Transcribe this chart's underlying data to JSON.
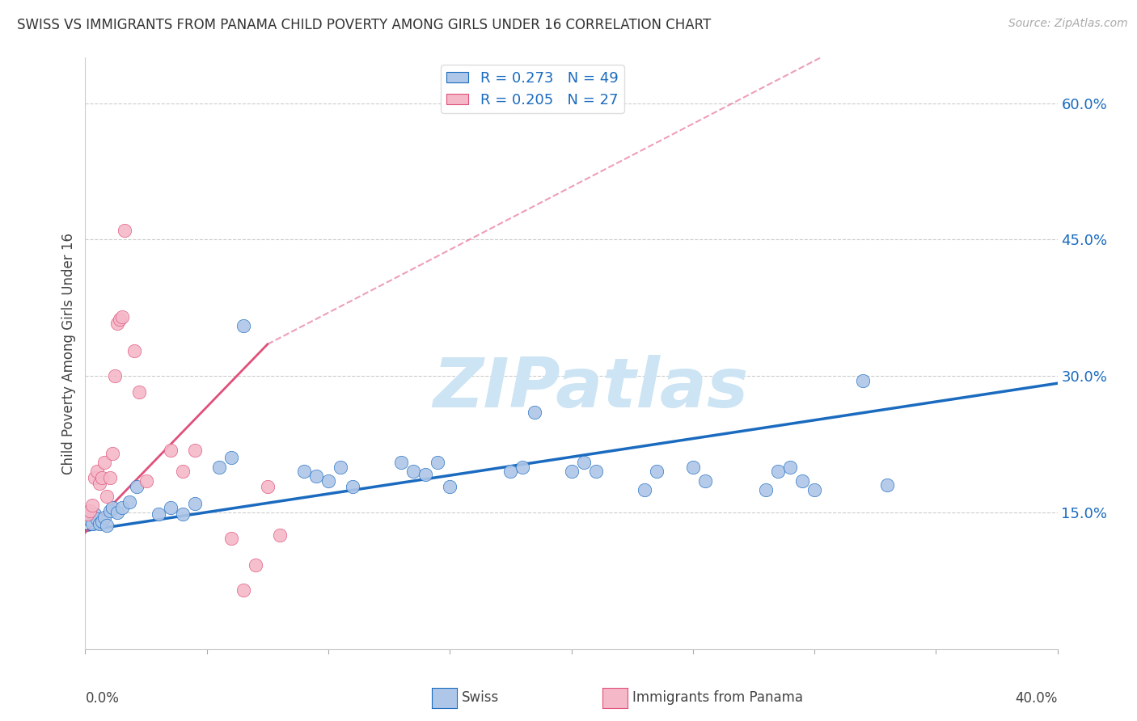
{
  "title": "SWISS VS IMMIGRANTS FROM PANAMA CHILD POVERTY AMONG GIRLS UNDER 16 CORRELATION CHART",
  "source_text": "Source: ZipAtlas.com",
  "ylabel": "Child Poverty Among Girls Under 16",
  "ytick_values": [
    0.15,
    0.3,
    0.45,
    0.6
  ],
  "xlim": [
    0.0,
    0.4
  ],
  "ylim": [
    0.0,
    0.65
  ],
  "swiss_R": 0.273,
  "swiss_N": 49,
  "panama_R": 0.205,
  "panama_N": 27,
  "swiss_color": "#aec6e8",
  "swiss_line_color": "#1a6bbf",
  "panama_color": "#f4b8c8",
  "panama_line_color": "#e0507a",
  "watermark": "ZIPatlas",
  "swiss_x": [
    0.001,
    0.002,
    0.003,
    0.004,
    0.005,
    0.006,
    0.007,
    0.008,
    0.009,
    0.01,
    0.011,
    0.013,
    0.015,
    0.018,
    0.021,
    0.03,
    0.035,
    0.04,
    0.045,
    0.055,
    0.06,
    0.065,
    0.09,
    0.095,
    0.1,
    0.105,
    0.11,
    0.13,
    0.135,
    0.14,
    0.145,
    0.15,
    0.175,
    0.18,
    0.185,
    0.2,
    0.205,
    0.21,
    0.23,
    0.235,
    0.25,
    0.255,
    0.28,
    0.285,
    0.29,
    0.295,
    0.3,
    0.32,
    0.33
  ],
  "swiss_y": [
    0.145,
    0.142,
    0.138,
    0.148,
    0.143,
    0.138,
    0.14,
    0.145,
    0.136,
    0.152,
    0.155,
    0.15,
    0.155,
    0.162,
    0.178,
    0.148,
    0.155,
    0.148,
    0.16,
    0.2,
    0.21,
    0.355,
    0.195,
    0.19,
    0.185,
    0.2,
    0.178,
    0.205,
    0.195,
    0.192,
    0.205,
    0.178,
    0.195,
    0.2,
    0.26,
    0.195,
    0.205,
    0.195,
    0.175,
    0.195,
    0.2,
    0.185,
    0.175,
    0.195,
    0.2,
    0.185,
    0.175,
    0.295,
    0.18
  ],
  "panama_x": [
    0.001,
    0.002,
    0.003,
    0.004,
    0.005,
    0.006,
    0.007,
    0.008,
    0.009,
    0.01,
    0.011,
    0.012,
    0.013,
    0.014,
    0.015,
    0.016,
    0.02,
    0.022,
    0.025,
    0.035,
    0.04,
    0.045,
    0.06,
    0.065,
    0.07,
    0.075,
    0.08
  ],
  "panama_y": [
    0.148,
    0.152,
    0.158,
    0.188,
    0.195,
    0.182,
    0.188,
    0.205,
    0.168,
    0.188,
    0.215,
    0.3,
    0.358,
    0.362,
    0.365,
    0.46,
    0.328,
    0.282,
    0.185,
    0.218,
    0.195,
    0.218,
    0.122,
    0.065,
    0.092,
    0.178,
    0.125
  ],
  "swiss_reg": [
    0.0,
    0.13,
    0.4,
    0.292
  ],
  "panama_reg_solid": [
    0.0,
    0.128,
    0.075,
    0.335
  ],
  "panama_reg_dash": [
    0.075,
    0.335,
    0.4,
    0.785
  ]
}
